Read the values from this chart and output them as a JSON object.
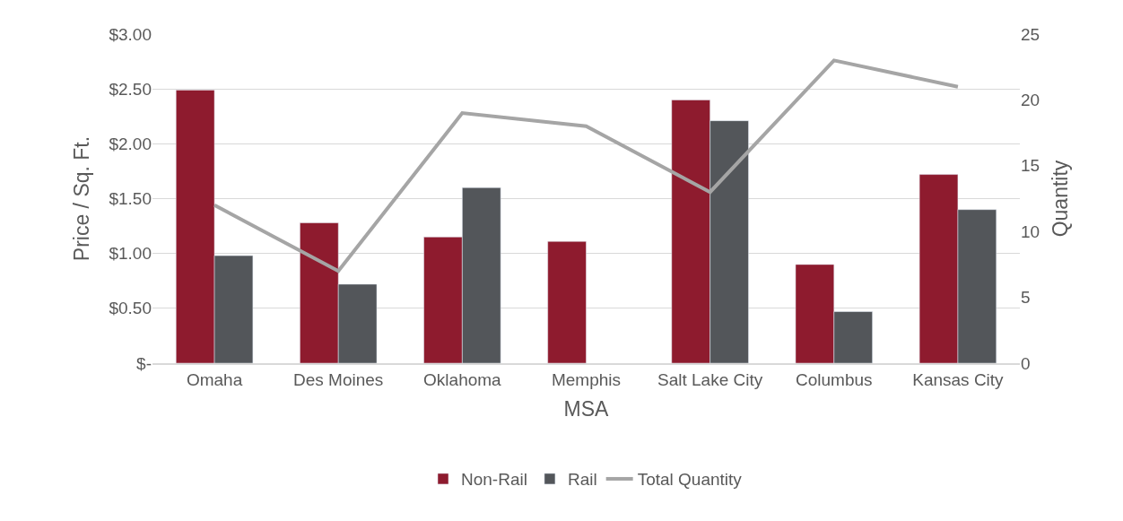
{
  "chart_data": {
    "type": "bar",
    "xlabel": "MSA",
    "ylabel": "Price / Sq. Ft.",
    "y2label": "Quantity",
    "categories": [
      "Omaha",
      "Des Moines",
      "Oklahoma",
      "Memphis",
      "Salt Lake City",
      "Columbus",
      "Kansas City"
    ],
    "series": [
      {
        "name": "Non-Rail",
        "color": "#8e1b2e",
        "values": [
          2.49,
          1.28,
          1.15,
          1.11,
          2.4,
          0.9,
          1.72
        ]
      },
      {
        "name": "Rail",
        "color": "#53565a",
        "values": [
          0.98,
          0.72,
          1.6,
          null,
          2.21,
          0.47,
          1.4
        ]
      },
      {
        "name": "Total Quantity",
        "type": "line",
        "axis": "y2",
        "color": "#a5a5a5",
        "values": [
          12,
          7,
          19,
          18,
          13,
          23,
          21
        ]
      }
    ],
    "ylim": [
      0,
      3
    ],
    "yticks": [
      {
        "value": 0,
        "label": "$-"
      },
      {
        "value": 0.5,
        "label": "$0.50"
      },
      {
        "value": 1,
        "label": "$1.00"
      },
      {
        "value": 1.5,
        "label": "$1.50"
      },
      {
        "value": 2,
        "label": "$2.00"
      },
      {
        "value": 2.5,
        "label": "$2.50"
      },
      {
        "value": 3,
        "label": "$3.00"
      }
    ],
    "y2lim": [
      0,
      25
    ],
    "y2ticks": [
      0,
      5,
      10,
      15,
      20,
      25
    ],
    "grid": "y",
    "legend": "bottom",
    "marker": "none",
    "line_style": "solid"
  }
}
